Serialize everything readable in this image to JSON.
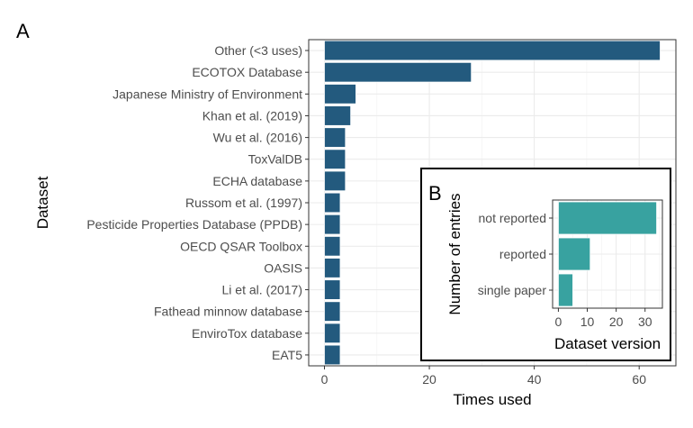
{
  "colors": {
    "main_bar": "#235a7e",
    "inset_bar": "#38a2a0",
    "grid": "#ebebeb",
    "panel_border": "#333333"
  },
  "chart_data": [
    {
      "panel": "A",
      "type": "bar",
      "orientation": "horizontal",
      "xlabel": "Times used",
      "ylabel": "Dataset",
      "xlim": [
        -3,
        67
      ],
      "xticks": [
        0,
        20,
        40,
        60
      ],
      "grid": true,
      "categories": [
        "Other (<3 uses)",
        "ECOTOX Database",
        "Japanese Ministry of Environment",
        "Khan et al. (2019)",
        "Wu et al. (2016)",
        "ToxValDB",
        "ECHA database",
        "Russom et al. (1997)",
        "Pesticide Properties Database (PPDB)",
        "OECD QSAR Toolbox",
        "OASIS",
        "Li et al. (2017)",
        "Fathead minnow database",
        "EnviroTox database",
        "EAT5"
      ],
      "values": [
        64,
        28,
        6,
        5,
        4,
        4,
        4,
        3,
        3,
        3,
        3,
        3,
        3,
        3,
        3
      ]
    },
    {
      "panel": "B",
      "type": "bar",
      "orientation": "horizontal",
      "xlabel": "Dataset version",
      "ylabel": "Number of entries",
      "xlim": [
        -2,
        36
      ],
      "xticks": [
        0,
        10,
        20,
        30
      ],
      "grid": true,
      "categories": [
        "not reported",
        "reported",
        "single paper"
      ],
      "values": [
        34,
        11,
        5
      ]
    }
  ]
}
